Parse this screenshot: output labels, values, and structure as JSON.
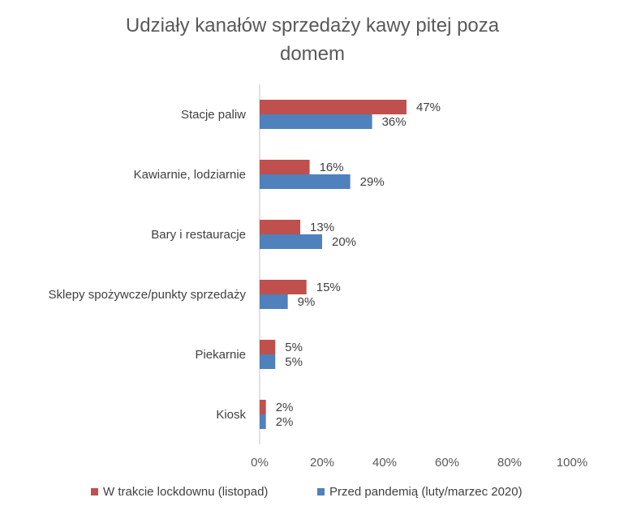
{
  "chart_data": {
    "type": "bar",
    "orientation": "horizontal",
    "title": "Udziały kanałów sprzedaży kawy pitej poza domem",
    "title_lines": [
      "Udziały kanałów sprzedaży kawy pitej poza",
      "domem"
    ],
    "categories": [
      "Stacje paliw",
      "Kawiarnie, lodziarnie",
      "Bary i restauracje",
      "Sklepy spożywcze/punkty sprzedaży",
      "Piekarnie",
      "Kiosk"
    ],
    "series": [
      {
        "name": "W trakcie lockdownu (listopad)",
        "color": "#C0504D",
        "values": [
          47,
          16,
          13,
          15,
          5,
          2
        ],
        "labels": [
          "47%",
          "16%",
          "13%",
          "15%",
          "5%",
          "2%"
        ]
      },
      {
        "name": "Przed pandemią (luty/marzec 2020)",
        "color": "#4F81BD",
        "values": [
          36,
          29,
          20,
          9,
          5,
          2
        ],
        "labels": [
          "36%",
          "29%",
          "20%",
          "9%",
          "5%",
          "2%"
        ]
      }
    ],
    "xlim": [
      0,
      100
    ],
    "xticks": [
      "0%",
      "20%",
      "40%",
      "60%",
      "80%",
      "100%"
    ],
    "axis_color": "#D9D9D9",
    "grid": false,
    "legend_position": "bottom"
  }
}
